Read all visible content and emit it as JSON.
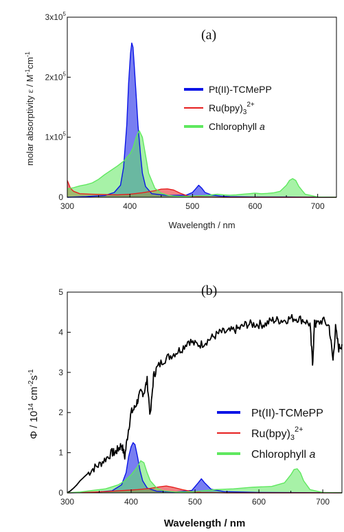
{
  "chart_data": [
    {
      "type": "area",
      "panel_label": "(a)",
      "xlabel": "Wavelength / nm",
      "ylabel_prefix": "molar absorptivity ",
      "ylabel_symbol": "ε",
      "ylabel_unit": " / M",
      "ylabel_sup1": "-1",
      "ylabel_unit2": "cm",
      "ylabel_sup2": "-1",
      "xlim": [
        300,
        730
      ],
      "ylim": [
        0,
        300000
      ],
      "x_ticks": [
        "300",
        "400",
        "500",
        "600",
        "700"
      ],
      "y_ticks": [
        {
          "base": "0",
          "exp": ""
        },
        {
          "base": "1x10",
          "exp": "5"
        },
        {
          "base": "2x10",
          "exp": "5"
        },
        {
          "base": "3x10",
          "exp": "5"
        }
      ],
      "legend_placement": "right",
      "series": [
        {
          "key": "pt",
          "name": "Pt(II)-TCMePP",
          "color": "#0a14e6",
          "x": [
            300,
            330,
            360,
            375,
            385,
            390,
            395,
            398,
            401,
            403,
            405,
            407,
            410,
            413,
            417,
            420,
            425,
            435,
            460,
            490,
            500,
            505,
            510,
            515,
            520,
            530,
            545,
            560,
            600,
            650,
            700,
            730
          ],
          "y": [
            0,
            1000,
            3000,
            8000,
            20000,
            50000,
            120000,
            190000,
            240000,
            257000,
            250000,
            220000,
            170000,
            120000,
            70000,
            40000,
            18000,
            6000,
            3000,
            3500,
            8000,
            14000,
            20000,
            15000,
            8000,
            4000,
            2000,
            1000,
            500,
            500,
            0,
            0
          ]
        },
        {
          "key": "ru",
          "name": "Ru(bpy)",
          "name_sub": "3",
          "name_sup": "2+",
          "color": "#e61e1e",
          "x": [
            300,
            305,
            310,
            320,
            340,
            360,
            380,
            400,
            420,
            440,
            450,
            460,
            470,
            480,
            490,
            500,
            520,
            550,
            600,
            730
          ],
          "y": [
            28000,
            15000,
            10000,
            6000,
            5000,
            4500,
            4000,
            5000,
            7500,
            11000,
            13500,
            14000,
            12000,
            7000,
            3000,
            1000,
            300,
            0,
            0,
            0
          ]
        },
        {
          "key": "chl",
          "name": "Chlorophyll ",
          "name_italic": "a",
          "color": "#5fe85f",
          "x": [
            300,
            310,
            320,
            330,
            340,
            350,
            360,
            370,
            380,
            390,
            400,
            405,
            410,
            415,
            420,
            425,
            430,
            440,
            450,
            460,
            470,
            480,
            490,
            500,
            510,
            520,
            530,
            540,
            550,
            560,
            570,
            580,
            590,
            600,
            610,
            620,
            630,
            640,
            650,
            655,
            660,
            665,
            670,
            680,
            700,
            730
          ],
          "y": [
            14000,
            16000,
            19000,
            21000,
            24000,
            30000,
            38000,
            45000,
            52000,
            60000,
            72000,
            82000,
            100000,
            111000,
            100000,
            70000,
            40000,
            15000,
            7000,
            3500,
            2000,
            1500,
            1500,
            2000,
            2500,
            3000,
            4000,
            5000,
            4000,
            3500,
            4000,
            5000,
            6000,
            7000,
            6000,
            6500,
            7500,
            10000,
            20000,
            28000,
            31000,
            28000,
            18000,
            5000,
            500,
            0
          ]
        }
      ]
    },
    {
      "type": "area",
      "panel_label": "(b)",
      "xlabel": "Wavelength / nm",
      "ylabel_prefix": "Φ / 10",
      "ylabel_sup1": "14",
      "ylabel_unit": " cm",
      "ylabel_sup2": "-2",
      "ylabel_unit2": "s",
      "ylabel_sup3": "-1",
      "xlim": [
        300,
        730
      ],
      "ylim": [
        0,
        5
      ],
      "x_ticks": [
        "300",
        "400",
        "500",
        "600",
        "700"
      ],
      "y_ticks": [
        "0",
        "1",
        "2",
        "3",
        "4",
        "5"
      ],
      "legend_placement": "right",
      "series": [
        {
          "key": "solar",
          "name": "",
          "color": "#000000",
          "x": [
            300,
            305,
            310,
            315,
            320,
            330,
            340,
            350,
            360,
            370,
            375,
            380,
            385,
            390,
            395,
            400,
            405,
            410,
            415,
            420,
            425,
            430,
            435,
            440,
            450,
            460,
            470,
            480,
            490,
            500,
            510,
            520,
            530,
            540,
            550,
            560,
            570,
            580,
            590,
            600,
            610,
            620,
            630,
            640,
            650,
            660,
            670,
            680,
            684,
            687,
            690,
            700,
            710,
            716,
            720,
            725,
            730
          ],
          "y": [
            0,
            0.05,
            0.12,
            0.2,
            0.3,
            0.45,
            0.6,
            0.7,
            0.85,
            1.0,
            1.0,
            1.1,
            1.2,
            0.9,
            1.5,
            2.0,
            2.1,
            2.3,
            2.5,
            2.5,
            2.8,
            1.9,
            2.9,
            3.1,
            3.3,
            3.4,
            3.5,
            3.6,
            3.8,
            3.7,
            3.7,
            3.8,
            3.9,
            4.0,
            4.0,
            4.05,
            4.1,
            4.2,
            4.2,
            4.2,
            4.2,
            4.3,
            4.3,
            4.3,
            4.35,
            4.35,
            4.3,
            4.2,
            3.2,
            4.2,
            4.2,
            4.3,
            4.15,
            3.3,
            4.1,
            3.6,
            3.7
          ]
        },
        {
          "key": "pt",
          "name": "Pt(II)-TCMePP",
          "color": "#0a14e6",
          "x": [
            300,
            340,
            370,
            385,
            392,
            396,
            400,
            403,
            406,
            410,
            414,
            418,
            425,
            440,
            470,
            495,
            505,
            510,
            515,
            525,
            545,
            600,
            730
          ],
          "y": [
            0,
            0.01,
            0.05,
            0.2,
            0.5,
            0.9,
            1.15,
            1.25,
            1.2,
            0.9,
            0.55,
            0.3,
            0.12,
            0.04,
            0.02,
            0.06,
            0.25,
            0.35,
            0.25,
            0.09,
            0.03,
            0.01,
            0
          ]
        },
        {
          "key": "ru",
          "name": "Ru(bpy)",
          "name_sub": "3",
          "name_sup": "2+",
          "color": "#e61e1e",
          "x": [
            300,
            330,
            360,
            390,
            410,
            430,
            445,
            455,
            465,
            480,
            495,
            510,
            550,
            730
          ],
          "y": [
            0,
            0.01,
            0.03,
            0.06,
            0.08,
            0.11,
            0.15,
            0.17,
            0.14,
            0.08,
            0.03,
            0.01,
            0,
            0
          ]
        },
        {
          "key": "chl",
          "name": "Chlorophyll ",
          "name_italic": "a",
          "color": "#5fe85f",
          "x": [
            300,
            320,
            340,
            360,
            380,
            390,
            400,
            410,
            415,
            420,
            425,
            430,
            440,
            450,
            470,
            500,
            530,
            560,
            590,
            620,
            640,
            650,
            655,
            660,
            665,
            670,
            680,
            700,
            730
          ],
          "y": [
            0,
            0.02,
            0.06,
            0.1,
            0.2,
            0.3,
            0.45,
            0.65,
            0.8,
            0.75,
            0.5,
            0.3,
            0.12,
            0.05,
            0.02,
            0.03,
            0.08,
            0.1,
            0.14,
            0.16,
            0.25,
            0.45,
            0.58,
            0.6,
            0.5,
            0.3,
            0.08,
            0.01,
            0
          ]
        }
      ]
    }
  ]
}
